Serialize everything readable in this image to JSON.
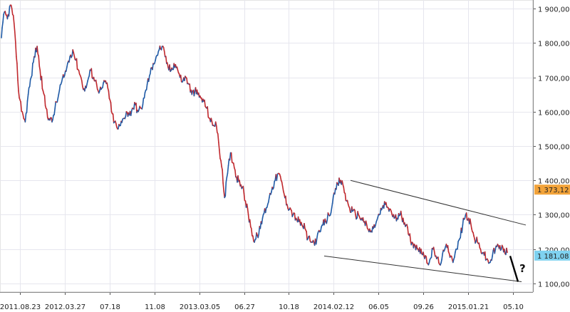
{
  "chart_data": {
    "type": "line",
    "title": "",
    "xlabel": "",
    "ylabel": "",
    "ylim": [
      1075,
      1925
    ],
    "y_ticks": [
      "1 100,00",
      "1 200,00",
      "1 300,00",
      "1 400,00",
      "1 500,00",
      "1 600,00",
      "1 700,00",
      "1 800,00",
      "1 900,00"
    ],
    "y_tick_values": [
      1100,
      1200,
      1300,
      1400,
      1500,
      1600,
      1700,
      1800,
      1900
    ],
    "x_ticks": [
      "2011.08.23",
      "2012.03.27",
      "07.18",
      "11.08",
      "2013.03.05",
      "06.27",
      "10.18",
      "2014.02.12",
      "06.05",
      "09.26",
      "2015.01.21",
      "05.10"
    ],
    "grid": true,
    "price_markers": [
      {
        "label": "1 373,12",
        "value": 1373.12,
        "bg": "#f2a33a",
        "fg": "#222222"
      },
      {
        "label": "1 181,08",
        "value": 1181.08,
        "bg": "#7fd2f0",
        "fg": "#222222"
      }
    ],
    "series": [
      {
        "values": [
          1815,
          1890,
          1870,
          1910,
          1880,
          1760,
          1640,
          1600,
          1570,
          1650,
          1700,
          1760,
          1790,
          1720,
          1660,
          1610,
          1580,
          1570,
          1610,
          1640,
          1680,
          1700,
          1730,
          1760,
          1780,
          1750,
          1720,
          1690,
          1660,
          1690,
          1720,
          1700,
          1680,
          1660,
          1670,
          1690,
          1660,
          1600,
          1570,
          1550,
          1560,
          1580,
          1600,
          1590,
          1610,
          1620,
          1600,
          1610,
          1640,
          1680,
          1710,
          1740,
          1760,
          1780,
          1790,
          1760,
          1730,
          1720,
          1740,
          1730,
          1700,
          1690,
          1700,
          1680,
          1650,
          1660,
          1650,
          1640,
          1630,
          1610,
          1580,
          1560,
          1570,
          1510,
          1440,
          1350,
          1420,
          1480,
          1450,
          1410,
          1400,
          1380,
          1340,
          1300,
          1260,
          1220,
          1240,
          1260,
          1300,
          1320,
          1350,
          1380,
          1400,
          1420,
          1400,
          1360,
          1330,
          1320,
          1300,
          1290,
          1280,
          1270,
          1260,
          1230,
          1220,
          1220,
          1230,
          1250,
          1270,
          1280,
          1300,
          1320,
          1360,
          1390,
          1400,
          1380,
          1340,
          1320,
          1310,
          1300,
          1300,
          1290,
          1280,
          1260,
          1250,
          1260,
          1280,
          1300,
          1320,
          1330,
          1320,
          1310,
          1290,
          1290,
          1300,
          1290,
          1270,
          1240,
          1220,
          1210,
          1200,
          1200,
          1180,
          1160,
          1170,
          1200,
          1180,
          1160,
          1170,
          1200,
          1210,
          1180,
          1170,
          1200,
          1230,
          1270,
          1300,
          1290,
          1260,
          1230,
          1220,
          1200,
          1190,
          1170,
          1160,
          1180,
          1200,
          1210,
          1200,
          1200,
          1190
        ],
        "color": "#1f5aa6"
      }
    ],
    "annotations": [
      {
        "type": "line",
        "from": [
          "2014.02.12",
          1400
        ],
        "to": [
          "05.10 +",
          1270
        ],
        "color": "#222222"
      },
      {
        "type": "line",
        "from": [
          "10.18 +",
          1180
        ],
        "to": [
          "05.10 +",
          1105
        ],
        "color": "#222222"
      },
      {
        "type": "line",
        "from": [
          "05.10",
          1180
        ],
        "to": [
          "05.10 +",
          1105
        ],
        "color": "#000000",
        "bold": true
      },
      {
        "type": "text",
        "text": "?",
        "at": "right of the last bar"
      }
    ]
  }
}
